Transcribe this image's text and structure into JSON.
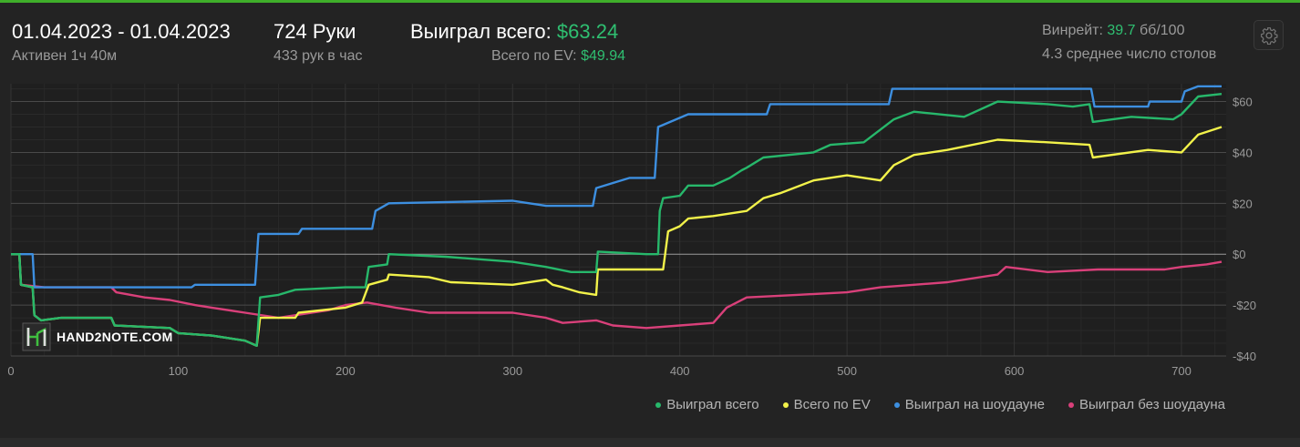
{
  "header": {
    "date_range": "01.04.2023 - 01.04.2023",
    "active": "Активен 1ч 40м",
    "hands": "724 Руки",
    "hands_per_hour": "433 рук в час",
    "won_label": "Выиграл всего:",
    "won_value": "$63.24",
    "ev_label": "Всего по EV:",
    "ev_value": "$49.94",
    "winrate_label": "Винрейт:",
    "winrate_value": "39.7",
    "winrate_unit": "бб/100",
    "avg_tables": "4.3 среднее число столов"
  },
  "watermark": {
    "text": "HAND2NOTE.COM"
  },
  "colors": {
    "background": "#232323",
    "accent_green": "#2fbf71",
    "won_total": "#27b86b",
    "ev_total": "#f2f24a",
    "showdown": "#3d8fe0",
    "non_showdown": "#d9407a"
  },
  "chart_data": {
    "type": "line",
    "xlabel": "",
    "ylabel": "",
    "xlim": [
      0,
      724
    ],
    "ylim": [
      -40,
      67
    ],
    "x_ticks": [
      0,
      100,
      200,
      300,
      400,
      500,
      600,
      700
    ],
    "y_ticks": [
      -40,
      -20,
      0,
      20,
      40,
      60
    ],
    "y_tick_labels": [
      "-$40",
      "-$20",
      "$0",
      "$20",
      "$40",
      "$60"
    ],
    "legend_position": "bottom-right",
    "grid": true,
    "series": [
      {
        "name": "Выиграл всего",
        "color": "#27b86b",
        "points": [
          [
            0,
            0
          ],
          [
            5,
            0
          ],
          [
            6,
            -12
          ],
          [
            13,
            -13
          ],
          [
            14,
            -24
          ],
          [
            18,
            -26
          ],
          [
            30,
            -25
          ],
          [
            60,
            -25
          ],
          [
            62,
            -28
          ],
          [
            95,
            -29
          ],
          [
            100,
            -31
          ],
          [
            120,
            -32
          ],
          [
            140,
            -34
          ],
          [
            147,
            -36
          ],
          [
            149,
            -17
          ],
          [
            160,
            -16
          ],
          [
            170,
            -14
          ],
          [
            200,
            -13
          ],
          [
            212,
            -13
          ],
          [
            214,
            -5
          ],
          [
            225,
            -4
          ],
          [
            226,
            0
          ],
          [
            260,
            -1
          ],
          [
            300,
            -3
          ],
          [
            320,
            -5
          ],
          [
            335,
            -7
          ],
          [
            350,
            -7
          ],
          [
            351,
            1
          ],
          [
            380,
            0
          ],
          [
            387,
            0
          ],
          [
            388,
            17
          ],
          [
            390,
            22
          ],
          [
            400,
            23
          ],
          [
            405,
            27
          ],
          [
            420,
            27
          ],
          [
            430,
            30
          ],
          [
            437,
            33
          ],
          [
            440,
            34
          ],
          [
            450,
            38
          ],
          [
            480,
            40
          ],
          [
            490,
            43
          ],
          [
            510,
            44
          ],
          [
            520,
            49
          ],
          [
            528,
            53
          ],
          [
            540,
            56
          ],
          [
            570,
            54
          ],
          [
            590,
            60
          ],
          [
            620,
            59
          ],
          [
            635,
            58
          ],
          [
            645,
            59
          ],
          [
            647,
            52
          ],
          [
            670,
            54
          ],
          [
            695,
            53
          ],
          [
            700,
            55
          ],
          [
            710,
            62
          ],
          [
            724,
            63
          ]
        ]
      },
      {
        "name": "Всего по EV",
        "color": "#f2f24a",
        "points": [
          [
            0,
            0
          ],
          [
            5,
            0
          ],
          [
            6,
            -12
          ],
          [
            13,
            -13
          ],
          [
            14,
            -24
          ],
          [
            18,
            -26
          ],
          [
            30,
            -25
          ],
          [
            60,
            -25
          ],
          [
            62,
            -28
          ],
          [
            95,
            -29
          ],
          [
            100,
            -31
          ],
          [
            120,
            -32
          ],
          [
            140,
            -34
          ],
          [
            147,
            -36
          ],
          [
            149,
            -25
          ],
          [
            170,
            -25
          ],
          [
            172,
            -23
          ],
          [
            200,
            -21
          ],
          [
            210,
            -19
          ],
          [
            214,
            -12
          ],
          [
            225,
            -10
          ],
          [
            226,
            -8
          ],
          [
            250,
            -9
          ],
          [
            263,
            -11
          ],
          [
            300,
            -12
          ],
          [
            320,
            -10
          ],
          [
            324,
            -12
          ],
          [
            330,
            -13
          ],
          [
            340,
            -15
          ],
          [
            350,
            -16
          ],
          [
            351,
            -6
          ],
          [
            390,
            -6
          ],
          [
            393,
            9
          ],
          [
            400,
            11
          ],
          [
            405,
            14
          ],
          [
            420,
            15
          ],
          [
            440,
            17
          ],
          [
            450,
            22
          ],
          [
            460,
            24
          ],
          [
            480,
            29
          ],
          [
            500,
            31
          ],
          [
            520,
            29
          ],
          [
            528,
            35
          ],
          [
            540,
            39
          ],
          [
            560,
            41
          ],
          [
            590,
            45
          ],
          [
            620,
            44
          ],
          [
            645,
            43
          ],
          [
            647,
            38
          ],
          [
            680,
            41
          ],
          [
            700,
            40
          ],
          [
            710,
            47
          ],
          [
            724,
            50
          ]
        ]
      },
      {
        "name": "Выиграл на шоудауне",
        "color": "#3d8fe0",
        "points": [
          [
            0,
            0
          ],
          [
            13,
            0
          ],
          [
            14,
            -13
          ],
          [
            108,
            -13
          ],
          [
            110,
            -12
          ],
          [
            146,
            -12
          ],
          [
            148,
            8
          ],
          [
            172,
            8
          ],
          [
            174,
            10
          ],
          [
            216,
            10
          ],
          [
            218,
            17
          ],
          [
            226,
            20
          ],
          [
            300,
            21
          ],
          [
            310,
            20
          ],
          [
            320,
            19
          ],
          [
            348,
            19
          ],
          [
            350,
            26
          ],
          [
            370,
            30
          ],
          [
            385,
            30
          ],
          [
            387,
            50
          ],
          [
            405,
            55
          ],
          [
            415,
            55
          ],
          [
            452,
            55
          ],
          [
            454,
            59
          ],
          [
            525,
            59
          ],
          [
            527,
            65
          ],
          [
            646,
            65
          ],
          [
            648,
            58
          ],
          [
            680,
            58
          ],
          [
            681,
            60
          ],
          [
            700,
            60
          ],
          [
            702,
            64
          ],
          [
            710,
            66
          ],
          [
            724,
            66
          ]
        ]
      },
      {
        "name": "Выиграл без шоудауна",
        "color": "#d9407a",
        "points": [
          [
            0,
            0
          ],
          [
            5,
            0
          ],
          [
            6,
            -12
          ],
          [
            20,
            -13
          ],
          [
            40,
            -13
          ],
          [
            60,
            -13
          ],
          [
            63,
            -15
          ],
          [
            80,
            -17
          ],
          [
            95,
            -18
          ],
          [
            110,
            -20
          ],
          [
            120,
            -21
          ],
          [
            140,
            -23
          ],
          [
            160,
            -25
          ],
          [
            190,
            -22
          ],
          [
            200,
            -20
          ],
          [
            213,
            -19
          ],
          [
            230,
            -21
          ],
          [
            250,
            -23
          ],
          [
            300,
            -23
          ],
          [
            320,
            -25
          ],
          [
            330,
            -27
          ],
          [
            350,
            -26
          ],
          [
            360,
            -28
          ],
          [
            380,
            -29
          ],
          [
            400,
            -28
          ],
          [
            420,
            -27
          ],
          [
            428,
            -21
          ],
          [
            440,
            -17
          ],
          [
            470,
            -16
          ],
          [
            500,
            -15
          ],
          [
            520,
            -13
          ],
          [
            540,
            -12
          ],
          [
            560,
            -11
          ],
          [
            590,
            -8
          ],
          [
            595,
            -5
          ],
          [
            620,
            -7
          ],
          [
            650,
            -6
          ],
          [
            690,
            -6
          ],
          [
            700,
            -5
          ],
          [
            715,
            -4
          ],
          [
            724,
            -3
          ]
        ]
      }
    ]
  }
}
